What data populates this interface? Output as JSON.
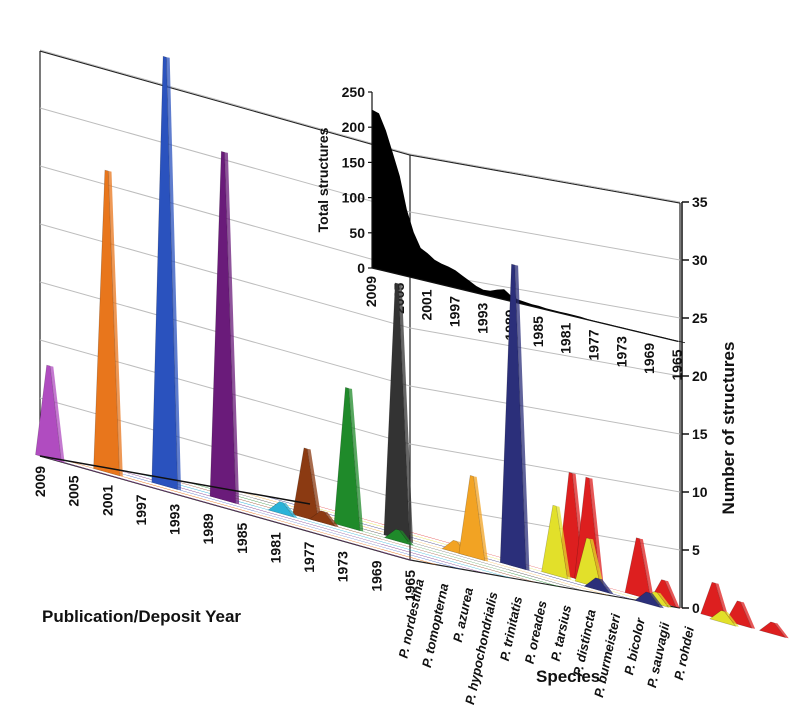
{
  "chart_data": [
    {
      "type": "area",
      "view": "3d-waterfall",
      "title": "",
      "xlabel": "Publication/Deposit Year",
      "zlabel": "Species",
      "ylabel": "Number of structures",
      "ylim": [
        0,
        35
      ],
      "yticks": [
        "0",
        "5",
        "10",
        "15",
        "20",
        "25",
        "30",
        "35"
      ],
      "year_ticks": [
        "2009",
        "2005",
        "2001",
        "1997",
        "1993",
        "1989",
        "1985",
        "1981",
        "1977",
        "1973",
        "1969",
        "1965"
      ],
      "series": [
        {
          "name": "P. nordestina",
          "color": "#b04cc0",
          "peaks": [
            {
              "year": 2008,
              "value": 8
            }
          ]
        },
        {
          "name": "P. tomopterna",
          "color": "#e8761c",
          "peaks": [
            {
              "year": 2004,
              "value": 26
            }
          ]
        },
        {
          "name": "P. azurea",
          "color": "#2a52be",
          "peaks": [
            {
              "year": 2000,
              "value": 37
            }
          ]
        },
        {
          "name": "P. hypochondrialis",
          "color": "#6a1b7a",
          "peaks": [
            {
              "year": 1996,
              "value": 30
            }
          ]
        },
        {
          "name": "P. trinitatis",
          "color": "#2bb3d8",
          "peaks": [
            {
              "year": 1992,
              "value": 1
            }
          ]
        },
        {
          "name": "P. oreades",
          "color": "#8b3a12",
          "peaks": [
            {
              "year": 1992,
              "value": 6
            },
            {
              "year": 1990,
              "value": 1
            }
          ]
        },
        {
          "name": "P. tarsius",
          "color": "#1f8a2a",
          "peaks": [
            {
              "year": 1990,
              "value": 12
            },
            {
              "year": 1984,
              "value": 1
            }
          ]
        },
        {
          "name": "P. distincta",
          "color": "#333333",
          "peaks": [
            {
              "year": 1987,
              "value": 22
            }
          ]
        },
        {
          "name": "P. burmeisteri",
          "color": "#f2a323",
          "peaks": [
            {
              "year": 1983,
              "value": 1
            },
            {
              "year": 1981,
              "value": 7
            }
          ]
        },
        {
          "name": "P. bicolor",
          "color": "#2b2f7a",
          "peaks": [
            {
              "year": 1979,
              "value": 26
            },
            {
              "year": 1969,
              "value": 1
            },
            {
              "year": 1963,
              "value": 1
            }
          ]
        },
        {
          "name": "P. sauvagii",
          "color": "#e2e02a",
          "peaks": [
            {
              "year": 1977,
              "value": 6
            },
            {
              "year": 1973,
              "value": 4
            },
            {
              "year": 1965,
              "value": 1
            },
            {
              "year": 1957,
              "value": 1
            }
          ]
        },
        {
          "name": "P. rohdei",
          "color": "#dd1f1f",
          "peaks": [
            {
              "year": 1978,
              "value": 9
            },
            {
              "year": 1976,
              "value": 9
            },
            {
              "year": 1970,
              "value": 5
            },
            {
              "year": 1967,
              "value": 2
            },
            {
              "year": 1961,
              "value": 3
            },
            {
              "year": 1958,
              "value": 2
            },
            {
              "year": 1954,
              "value": 1
            }
          ]
        }
      ]
    },
    {
      "type": "area",
      "title": "",
      "ylabel": "Total structures",
      "ylim": [
        0,
        250
      ],
      "yticks": [
        "250",
        "200",
        "150",
        "100",
        "50",
        "0"
      ],
      "xticks": [
        "2009",
        "2005",
        "2001",
        "1997",
        "1993",
        "1989",
        "1985",
        "1981",
        "1977",
        "1973",
        "1969",
        "1965"
      ],
      "x": [
        2009,
        2008,
        2007,
        2006,
        2005,
        2004,
        2003,
        2002,
        2001,
        2000,
        1999,
        1998,
        1997,
        1996,
        1995,
        1994,
        1993,
        1992,
        1991,
        1990,
        1989,
        1988,
        1987,
        1986,
        1985,
        1984,
        1983,
        1982,
        1981,
        1980,
        1979,
        1978,
        1977,
        1976,
        1975,
        1974,
        1973,
        1972,
        1971,
        1970,
        1969,
        1968,
        1967,
        1966,
        1965,
        1964
      ],
      "values": [
        225,
        222,
        200,
        170,
        140,
        95,
        65,
        45,
        40,
        33,
        30,
        28,
        25,
        20,
        15,
        10,
        7,
        8,
        12,
        15,
        8,
        5,
        4,
        3,
        3,
        2,
        2,
        2,
        2,
        2,
        2,
        1,
        1,
        1,
        1,
        1,
        1,
        1,
        1,
        1,
        1,
        1,
        1,
        1,
        1,
        1
      ]
    }
  ]
}
